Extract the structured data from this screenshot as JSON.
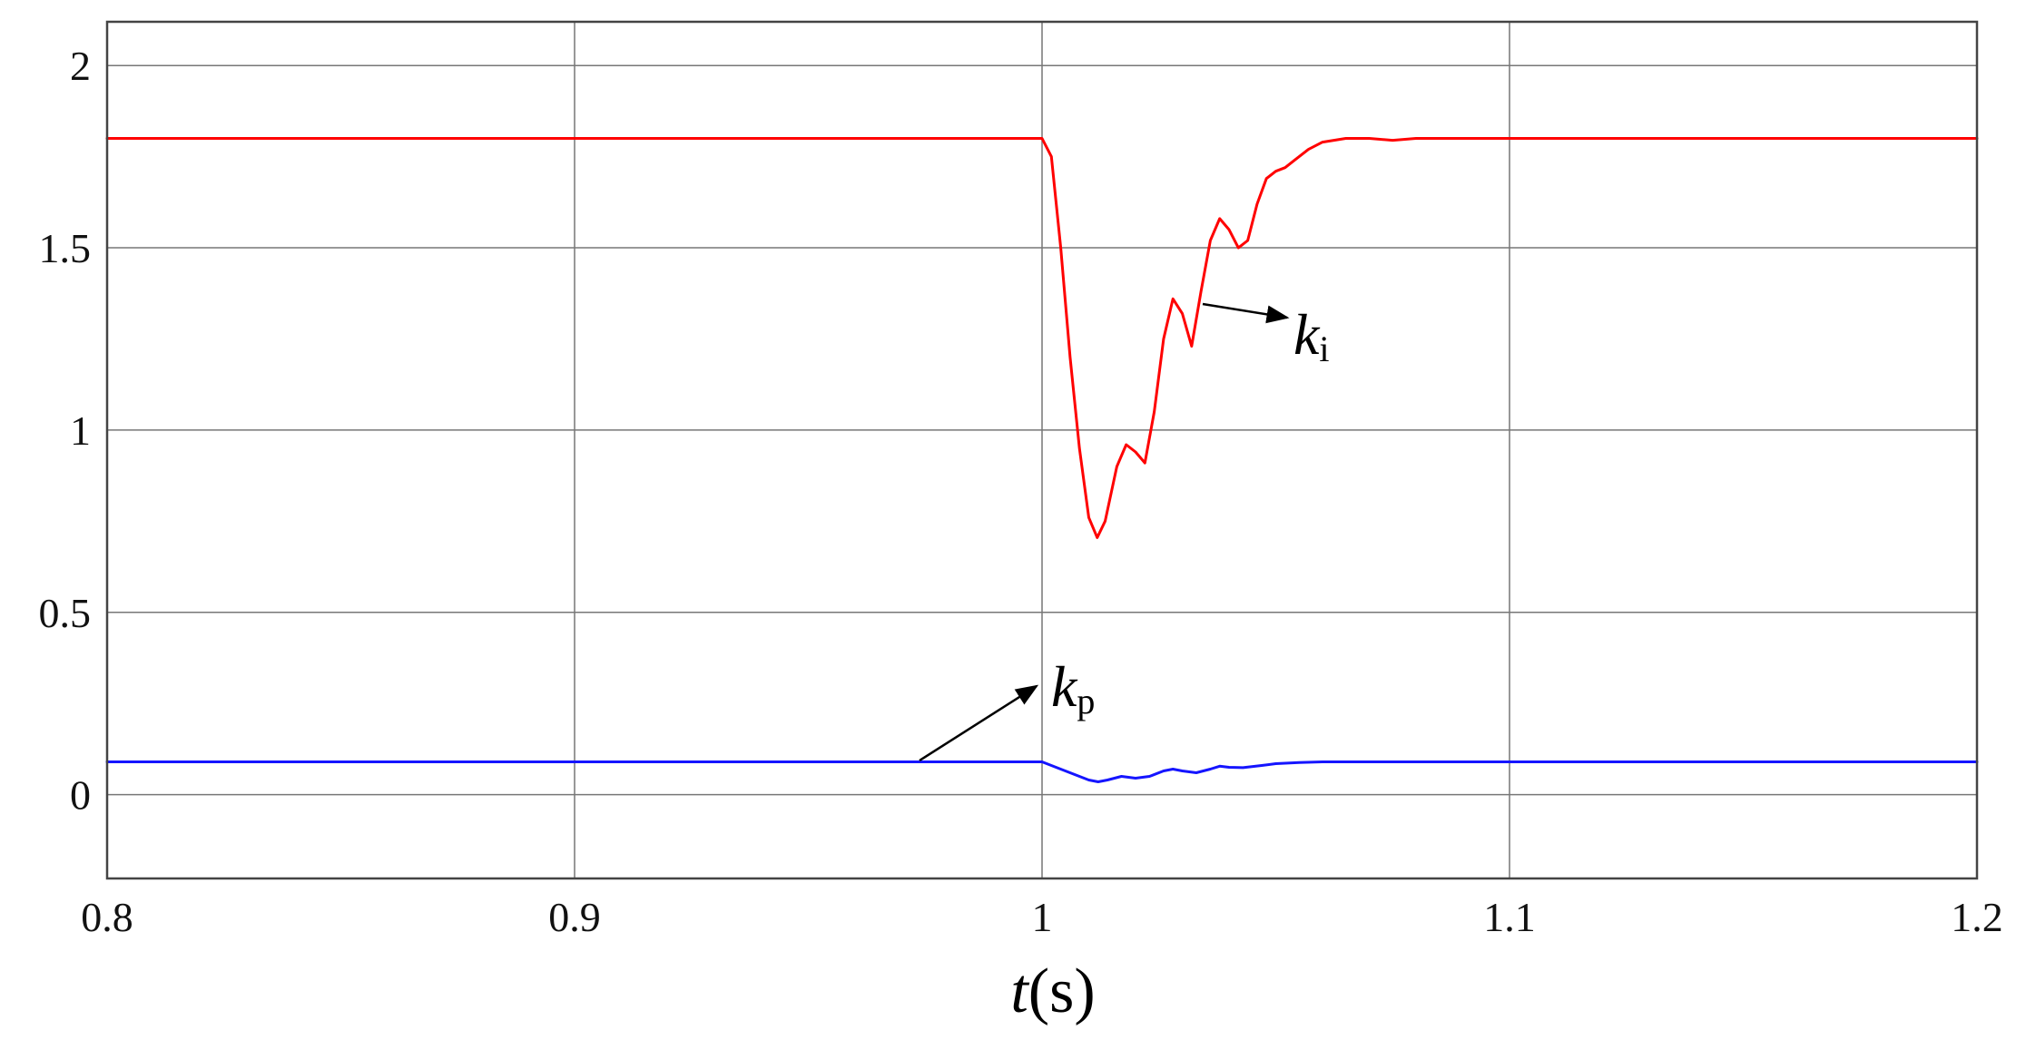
{
  "chart_data": {
    "type": "line",
    "xlabel": {
      "var": "t",
      "unit": "(s)"
    },
    "ylabel": "",
    "xlim": [
      0.8,
      1.2
    ],
    "ylim": [
      -0.23,
      2.12
    ],
    "xticks": [
      0.8,
      0.9,
      1.0,
      1.1,
      1.2
    ],
    "xtick_labels": [
      "0.8",
      "0.9",
      "1",
      "1.1",
      "1.2"
    ],
    "yticks": [
      0,
      0.5,
      1,
      1.5,
      2
    ],
    "ytick_labels": [
      "0",
      "0.5",
      "1",
      "1.5",
      "2"
    ],
    "grid": true,
    "series": [
      {
        "name": "k_i",
        "color": "#ff0000",
        "points": [
          [
            0.8,
            1.8
          ],
          [
            1.0,
            1.8
          ],
          [
            1.002,
            1.75
          ],
          [
            1.004,
            1.5
          ],
          [
            1.006,
            1.2
          ],
          [
            1.008,
            0.95
          ],
          [
            1.01,
            0.76
          ],
          [
            1.0118,
            0.705
          ],
          [
            1.0135,
            0.75
          ],
          [
            1.016,
            0.9
          ],
          [
            1.018,
            0.96
          ],
          [
            1.02,
            0.94
          ],
          [
            1.022,
            0.91
          ],
          [
            1.024,
            1.05
          ],
          [
            1.026,
            1.25
          ],
          [
            1.028,
            1.36
          ],
          [
            1.03,
            1.32
          ],
          [
            1.032,
            1.23
          ],
          [
            1.034,
            1.38
          ],
          [
            1.036,
            1.52
          ],
          [
            1.038,
            1.58
          ],
          [
            1.04,
            1.55
          ],
          [
            1.042,
            1.5
          ],
          [
            1.044,
            1.52
          ],
          [
            1.046,
            1.62
          ],
          [
            1.048,
            1.69
          ],
          [
            1.05,
            1.71
          ],
          [
            1.052,
            1.72
          ],
          [
            1.054,
            1.74
          ],
          [
            1.057,
            1.77
          ],
          [
            1.06,
            1.79
          ],
          [
            1.065,
            1.8
          ],
          [
            1.07,
            1.8
          ],
          [
            1.075,
            1.795
          ],
          [
            1.08,
            1.8
          ],
          [
            1.2,
            1.8
          ]
        ]
      },
      {
        "name": "k_p",
        "color": "#1515ff",
        "points": [
          [
            0.8,
            0.09
          ],
          [
            1.0,
            0.09
          ],
          [
            1.003,
            0.075
          ],
          [
            1.007,
            0.055
          ],
          [
            1.01,
            0.04
          ],
          [
            1.012,
            0.035
          ],
          [
            1.014,
            0.04
          ],
          [
            1.017,
            0.05
          ],
          [
            1.02,
            0.045
          ],
          [
            1.023,
            0.05
          ],
          [
            1.026,
            0.065
          ],
          [
            1.028,
            0.07
          ],
          [
            1.03,
            0.065
          ],
          [
            1.033,
            0.06
          ],
          [
            1.036,
            0.07
          ],
          [
            1.038,
            0.078
          ],
          [
            1.04,
            0.075
          ],
          [
            1.043,
            0.074
          ],
          [
            1.047,
            0.08
          ],
          [
            1.05,
            0.085
          ],
          [
            1.055,
            0.088
          ],
          [
            1.06,
            0.09
          ],
          [
            1.2,
            0.09
          ]
        ]
      }
    ],
    "annotations": [
      {
        "base": "k",
        "sub": "i"
      },
      {
        "base": "k",
        "sub": "p"
      }
    ]
  }
}
